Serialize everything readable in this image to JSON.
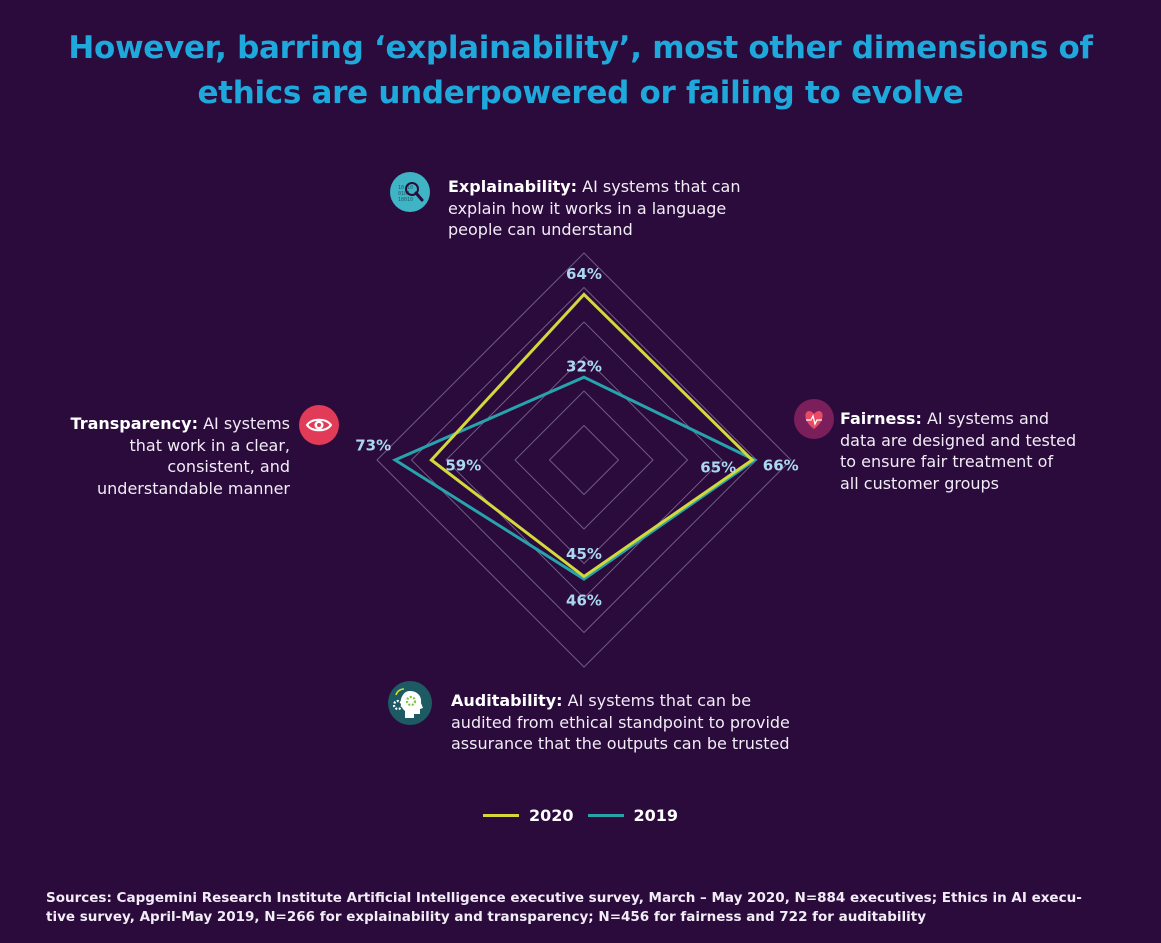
{
  "title_line1": "However, barring ‘explainability’, most other dimensions of",
  "title_line2": "ethics are underpowered or failing to evolve",
  "dimensions": {
    "explainability": {
      "name": "Explainability:",
      "line1": " AI systems that can",
      "line2": "explain how it works in a language",
      "line3": "people can understand",
      "icon": "magnifier-data-icon",
      "icon_color": "#3fb4c5"
    },
    "fairness": {
      "name": "Fairness:",
      "line1": " AI systems and",
      "line2": "data are designed and tested",
      "line3": "to ensure fair treatment of",
      "line4": "all customer groups",
      "icon": "heart-pulse-icon",
      "icon_color": "#7a1f5c"
    },
    "auditability": {
      "name": "Auditability:",
      "line1": " AI systems that can be",
      "line2": "audited from ethical standpoint to provide",
      "line3": "assurance that the outputs can be trusted",
      "icon": "head-gears-icon",
      "icon_color": "#1d5a63"
    },
    "transparency": {
      "name": "Transparency:",
      "line1": " AI systems",
      "line2": "that work in a clear,",
      "line3": "consistent, and",
      "line4": "understandable manner",
      "icon": "eye-icon",
      "icon_color": "#e23b57"
    }
  },
  "legend": {
    "label_2020": "2020",
    "label_2019": "2019"
  },
  "sources_line1": "Sources: Capgemini Research Institute Artificial Intelligence executive survey, March – May 2020, N=884 executives; Ethics in AI execu-",
  "sources_line2": "tive survey, April-May 2019, N=266 for explainability and transparency; N=456 for fairness and 722 for auditability",
  "chart_data": {
    "type": "radar",
    "axes": [
      "Explainability",
      "Fairness",
      "Auditability",
      "Transparency"
    ],
    "series": [
      {
        "name": "2020",
        "values": [
          64,
          65,
          45,
          59
        ],
        "labels": [
          "64%",
          "65%",
          "45%",
          "59%"
        ],
        "color": "#d3d93a"
      },
      {
        "name": "2019",
        "values": [
          32,
          66,
          46,
          73
        ],
        "labels": [
          "32%",
          "66%",
          "46%",
          "73%"
        ],
        "color": "#27a3ac"
      }
    ],
    "range": [
      0,
      80
    ],
    "rings": 6,
    "grid_color": "#6e5a82"
  }
}
